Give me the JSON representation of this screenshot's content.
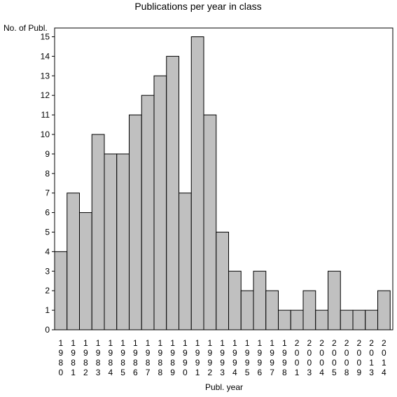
{
  "chart_data": {
    "type": "bar",
    "title": "Publications per year in class",
    "ylabel": "No. of Publ.",
    "xlabel": "Publ. year",
    "ylim": [
      0,
      15.6
    ],
    "yticks": [
      0,
      1,
      2,
      3,
      4,
      5,
      6,
      7,
      8,
      9,
      10,
      11,
      12,
      13,
      14,
      15
    ],
    "categories": [
      "1980",
      "1981",
      "1982",
      "1983",
      "1984",
      "1985",
      "1986",
      "1987",
      "1988",
      "1989",
      "1990",
      "1991",
      "1992",
      "1993",
      "1994",
      "1995",
      "1996",
      "1997",
      "1998",
      "2001",
      "2003",
      "2004",
      "2005",
      "2008",
      "2009",
      "2013",
      "2014"
    ],
    "values": [
      4,
      7,
      6,
      10,
      9,
      9,
      11,
      12,
      13,
      14,
      7,
      15,
      11,
      5,
      3,
      2,
      3,
      2,
      1,
      1,
      2,
      1,
      3,
      1,
      1,
      1,
      2
    ],
    "grid": false,
    "colors": {
      "bar_fill": "#c0c0c0",
      "bar_stroke": "#000000",
      "background": "#ffffff"
    }
  }
}
